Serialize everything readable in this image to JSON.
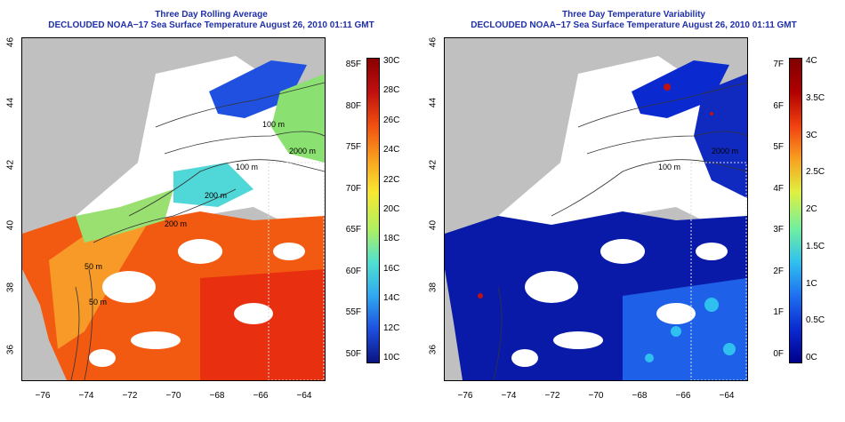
{
  "left": {
    "title": "Three Day Rolling Average",
    "subtitle": "DECLOUDED NOAA−17 Sea Surface Temperature August 26, 2010 01:11 GMT",
    "scale_left": [
      "85F",
      "80F",
      "75F",
      "70F",
      "65F",
      "60F",
      "55F",
      "50F"
    ],
    "scale_right": [
      "30C",
      "28C",
      "26C",
      "24C",
      "22C",
      "20C",
      "18C",
      "16C",
      "14C",
      "12C",
      "10C"
    ],
    "contours": [
      "100 m",
      "100 m",
      "200 m",
      "200 m",
      "2000 m",
      "50 m",
      "50 m"
    ],
    "colors": [
      "#0a1480",
      "#1e50e0",
      "#30a8f0",
      "#50e0d0",
      "#b0f060",
      "#f8e830",
      "#f8a020",
      "#f05010",
      "#c01010",
      "#8a0000"
    ]
  },
  "right": {
    "title": "Three Day Temperature Variability",
    "subtitle": "DECLOUDED NOAA−17 Sea Surface Temperature August 26, 2010 01:11 GMT",
    "scale_left": [
      "7F",
      "6F",
      "5F",
      "4F",
      "3F",
      "2F",
      "1F",
      "0F"
    ],
    "scale_right": [
      "4C",
      "3.5C",
      "3C",
      "2.5C",
      "2C",
      "1.5C",
      "1C",
      "0.5C",
      "0C"
    ],
    "contours": [
      "100 m",
      "2000 m"
    ],
    "colors": [
      "#00008a",
      "#0a2ad0",
      "#1e70f0",
      "#30c0f0",
      "#70f0a0",
      "#e0f040",
      "#f8a020",
      "#f04010",
      "#b00000",
      "#800000"
    ]
  },
  "axes": {
    "y_ticks": [
      "46",
      "44",
      "42",
      "40",
      "38",
      "36"
    ],
    "x_ticks": [
      "−76",
      "−74",
      "−72",
      "−70",
      "−68",
      "−66",
      "−64"
    ]
  }
}
